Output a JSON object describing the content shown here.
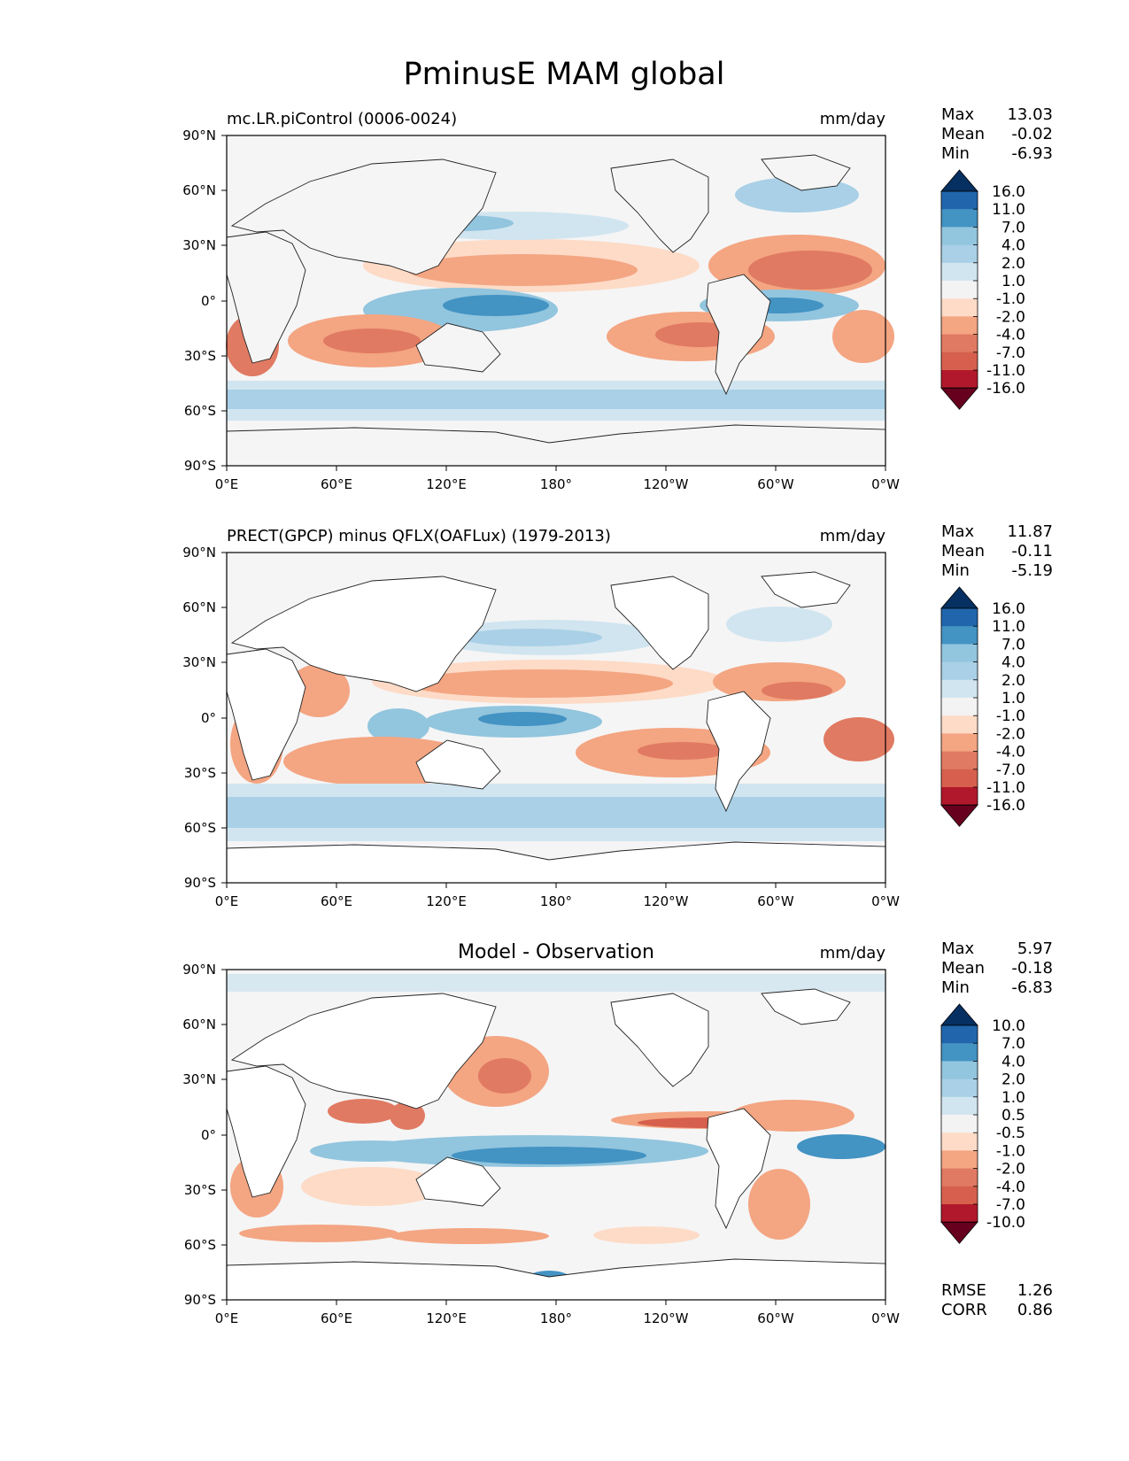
{
  "figure": {
    "title": "PminusE MAM global"
  },
  "chart_data": [
    {
      "type": "heatmap",
      "title": "mc.LR.piControl (0006-0024)",
      "units": "mm/day",
      "xlim": [
        0,
        360
      ],
      "ylim": [
        -90,
        90
      ],
      "x_ticks": [
        "0°E",
        "60°E",
        "120°E",
        "180°",
        "120°W",
        "60°W",
        "0°W"
      ],
      "y_ticks": [
        "90°N",
        "60°N",
        "30°N",
        "0°",
        "30°S",
        "60°S",
        "90°S"
      ],
      "stats": {
        "max_label": "Max",
        "max": "13.03",
        "mean_label": "Mean",
        "mean": "-0.02",
        "min_label": "Min",
        "min": "-6.93"
      },
      "colorbar_levels": [
        "16.0",
        "11.0",
        "7.0",
        "4.0",
        "2.0",
        "1.0",
        "-1.0",
        "-2.0",
        "-4.0",
        "-7.0",
        "-11.0",
        "-16.0"
      ],
      "colorbar_colors": [
        "#053061",
        "#2166ac",
        "#4393c3",
        "#92c5de",
        "#a9d0e6",
        "#d1e5f0",
        "#f3f3f3",
        "#fddbc7",
        "#f4a582",
        "#e07a62",
        "#d6604d",
        "#b2182b",
        "#67001f"
      ]
    },
    {
      "type": "heatmap",
      "title": "PRECT(GPCP) minus QFLX(OAFLux) (1979-2013)",
      "units": "mm/day",
      "xlim": [
        0,
        360
      ],
      "ylim": [
        -90,
        90
      ],
      "x_ticks": [
        "0°E",
        "60°E",
        "120°E",
        "180°",
        "120°W",
        "60°W",
        "0°W"
      ],
      "y_ticks": [
        "90°N",
        "60°N",
        "30°N",
        "0°",
        "30°S",
        "60°S",
        "90°S"
      ],
      "stats": {
        "max_label": "Max",
        "max": "11.87",
        "mean_label": "Mean",
        "mean": "-0.11",
        "min_label": "Min",
        "min": "-5.19"
      },
      "colorbar_levels": [
        "16.0",
        "11.0",
        "7.0",
        "4.0",
        "2.0",
        "1.0",
        "-1.0",
        "-2.0",
        "-4.0",
        "-7.0",
        "-11.0",
        "-16.0"
      ],
      "colorbar_colors": [
        "#053061",
        "#2166ac",
        "#4393c3",
        "#92c5de",
        "#a9d0e6",
        "#d1e5f0",
        "#f3f3f3",
        "#fddbc7",
        "#f4a582",
        "#e07a62",
        "#d6604d",
        "#b2182b",
        "#67001f"
      ]
    },
    {
      "type": "heatmap",
      "title": "Model - Observation",
      "units": "mm/day",
      "xlim": [
        0,
        360
      ],
      "ylim": [
        -90,
        90
      ],
      "x_ticks": [
        "0°E",
        "60°E",
        "120°E",
        "180°",
        "120°W",
        "60°W",
        "0°W"
      ],
      "y_ticks": [
        "90°N",
        "60°N",
        "30°N",
        "0°",
        "30°S",
        "60°S",
        "90°S"
      ],
      "stats": {
        "max_label": "Max",
        "max": "5.97",
        "mean_label": "Mean",
        "mean": "-0.18",
        "min_label": "Min",
        "min": "-6.83"
      },
      "colorbar_levels": [
        "10.0",
        "7.0",
        "4.0",
        "2.0",
        "1.0",
        "0.5",
        "-0.5",
        "-1.0",
        "-2.0",
        "-4.0",
        "-7.0",
        "-10.0"
      ],
      "colorbar_colors": [
        "#053061",
        "#2166ac",
        "#4393c3",
        "#92c5de",
        "#a9d0e6",
        "#d1e5f0",
        "#f3f3f3",
        "#fddbc7",
        "#f4a582",
        "#e07a62",
        "#d6604d",
        "#b2182b",
        "#67001f"
      ],
      "extra_stats": {
        "rmse_label": "RMSE",
        "rmse": "1.26",
        "corr_label": "CORR",
        "corr": "0.86"
      }
    }
  ]
}
